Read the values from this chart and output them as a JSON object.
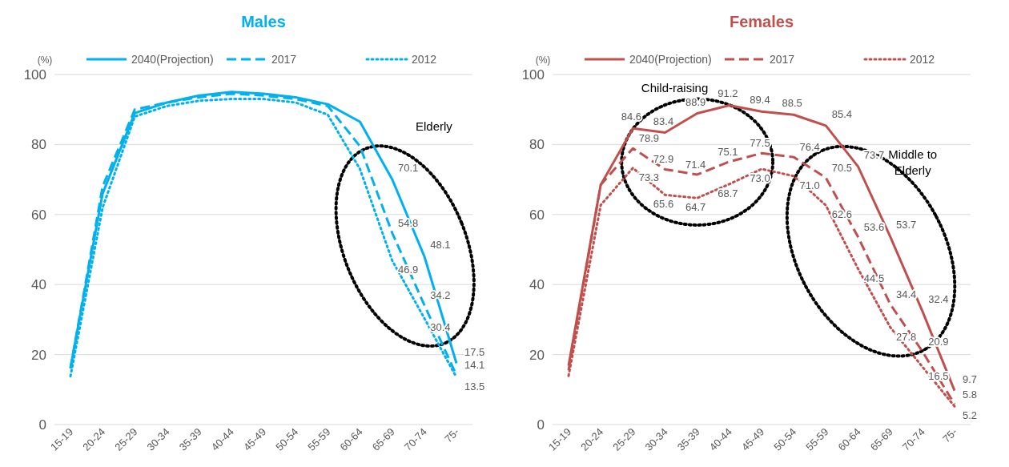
{
  "chart_data": [
    {
      "type": "line",
      "title": "Males",
      "ylabel": "(%)",
      "categories": [
        "15-19",
        "20-24",
        "25-29",
        "30-34",
        "35-39",
        "40-44",
        "45-49",
        "50-54",
        "55-59",
        "60-64",
        "65-69",
        "70-74",
        "75-"
      ],
      "ylim": [
        0,
        100
      ],
      "yticks": [
        0,
        20,
        40,
        60,
        80,
        100
      ],
      "grid": "y",
      "legend": "top",
      "marker": "none",
      "annotations": [
        "Elderly"
      ],
      "series": [
        {
          "name": "2040(Projection)",
          "color": "#00b0f0",
          "line_style": "solid",
          "values": [
            16.2,
            66,
            89,
            92,
            94,
            95,
            94.5,
            93.5,
            91.5,
            86.5,
            70.1,
            48.1,
            17.5
          ],
          "value_labels": [
            null,
            null,
            null,
            null,
            null,
            null,
            null,
            null,
            null,
            null,
            "70.1",
            "48.1",
            "17.5"
          ]
        },
        {
          "name": "2017",
          "color": "#00b0f0",
          "line_style": "dashed",
          "values": [
            16,
            68,
            90,
            92,
            93.5,
            94.5,
            94,
            93,
            91,
            79.5,
            54.8,
            34.2,
            14.1
          ],
          "value_labels": [
            null,
            null,
            null,
            null,
            null,
            null,
            null,
            null,
            null,
            null,
            "54.8",
            "34.2",
            "14.1"
          ]
        },
        {
          "name": "2012",
          "color": "#00b0f0",
          "line_style": "dotted",
          "values": [
            13.8,
            62,
            88,
            91,
            92.5,
            93,
            93,
            92,
            88.5,
            73,
            46.9,
            30.4,
            13.5
          ],
          "value_labels": [
            null,
            null,
            null,
            null,
            null,
            null,
            null,
            null,
            null,
            null,
            "46.9",
            "30.4",
            "13.5"
          ]
        }
      ]
    },
    {
      "type": "line",
      "title": "Females",
      "ylabel": "(%)",
      "categories": [
        "15-19",
        "20-24",
        "25-29",
        "30-34",
        "35-39",
        "40-44",
        "45-49",
        "50-54",
        "55-59",
        "60-64",
        "65-69",
        "70-74",
        "75-"
      ],
      "ylim": [
        0,
        100
      ],
      "yticks": [
        0,
        20,
        40,
        60,
        80,
        100
      ],
      "grid": "y",
      "legend": "top",
      "marker": "none",
      "annotations": [
        "Child-raising",
        "Middle to Elderly"
      ],
      "series": [
        {
          "name": "2040(Projection)",
          "color": "#c0504d",
          "line_style": "solid",
          "values": [
            16.8,
            68.5,
            84.6,
            83.4,
            88.9,
            91.2,
            89.4,
            88.5,
            85.4,
            73.7,
            53.7,
            32.4,
            9.7
          ],
          "value_labels": [
            null,
            null,
            "84.6",
            "83.4",
            "88.9",
            "91.2",
            "89.4",
            "88.5",
            "85.4",
            "73.7",
            "53.7",
            "32.4",
            "9.7"
          ]
        },
        {
          "name": "2017",
          "color": "#c0504d",
          "line_style": "dashed",
          "values": [
            15.5,
            68.5,
            78.9,
            72.9,
            71.4,
            75.1,
            77.5,
            76.4,
            70.5,
            53.6,
            34.4,
            20.9,
            5.8
          ],
          "value_labels": [
            null,
            null,
            "78.9",
            "72.9",
            "71.4",
            "75.1",
            "77.5",
            "76.4",
            "70.5",
            "53.6",
            "34.4",
            "20.9",
            "5.8"
          ]
        },
        {
          "name": "2012",
          "color": "#c0504d",
          "line_style": "dotted",
          "values": [
            13.9,
            62.7,
            73.3,
            65.6,
            64.7,
            68.7,
            73.0,
            71.0,
            62.6,
            44.5,
            27.8,
            16.5,
            5.2
          ],
          "value_labels": [
            null,
            null,
            "73.3",
            "65.6",
            "64.7",
            "68.7",
            "73.0",
            "71.0",
            "62.6",
            "44.5",
            "27.8",
            "16.5",
            "5.2"
          ]
        }
      ]
    }
  ]
}
